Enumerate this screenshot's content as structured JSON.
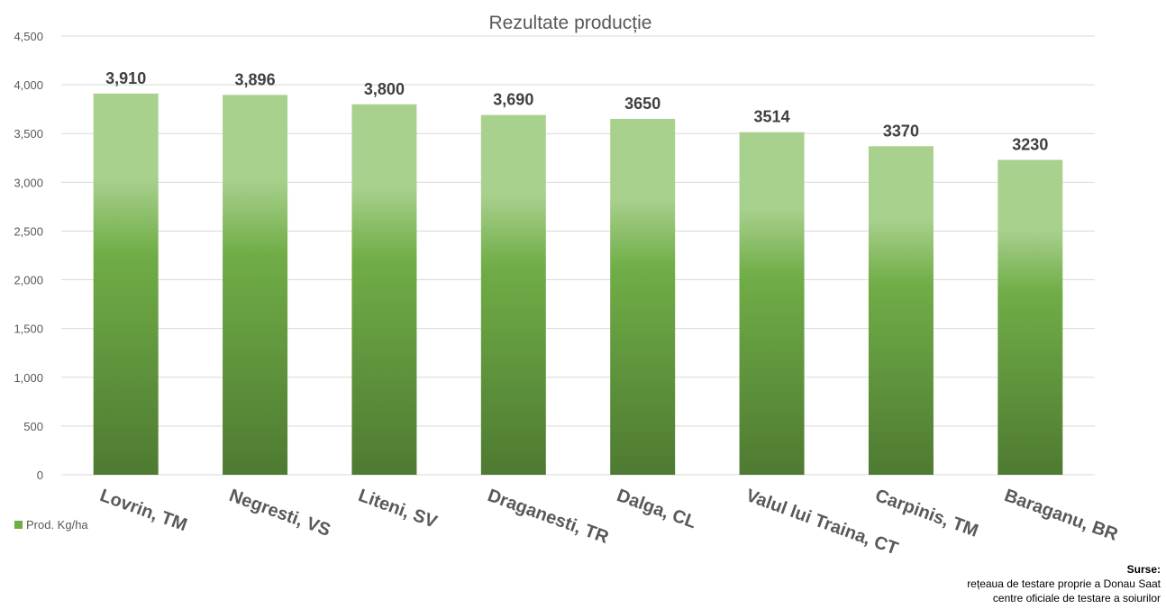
{
  "chart_data": {
    "type": "bar",
    "title": "Rezultate producție",
    "categories": [
      "Lovrin, TM",
      "Negresti, VS",
      "Liteni, SV",
      "Draganesti, TR",
      "Dalga, CL",
      "Valul lui Traina, CT",
      "Carpinis, TM",
      "Baraganu, BR"
    ],
    "values": [
      3910,
      3896,
      3800,
      3690,
      3650,
      3514,
      3370,
      3230
    ],
    "data_labels": [
      "3,910",
      "3,896",
      "3,800",
      "3,690",
      "3650",
      "3514",
      "3370",
      "3230"
    ],
    "ylim": [
      0,
      4500
    ],
    "yticks": [
      "0",
      "500",
      "1,000",
      "1,500",
      "2,000",
      "2,500",
      "3,000",
      "3,500",
      "4,000",
      "4,500"
    ],
    "legend": {
      "position": "left",
      "label": "Prod. Kg/ha"
    },
    "grid": true,
    "colors": {
      "bar_top": "#a9d18e",
      "bar_mid": "#70ad47",
      "bar_bottom": "#4e7a31",
      "grid": "#d9d9d9",
      "text": "#595959"
    }
  },
  "sources": {
    "header": "Surse:",
    "lines": [
      "rețeaua de testare proprie a Donau Saat",
      "centre oficiale de testare a soiurilor"
    ]
  }
}
